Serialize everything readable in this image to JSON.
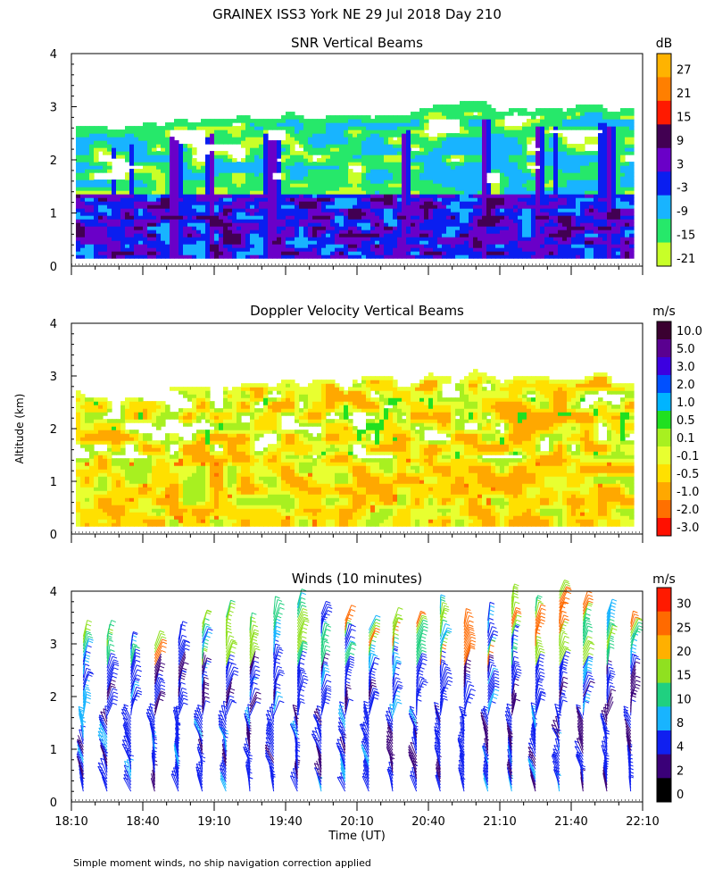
{
  "title": "GRAINEX ISS3 York NE  29 Jul 2018 Day 210",
  "footnote": "Simple moment winds, no ship navigation correction applied",
  "ylabel": "Altitude (km)",
  "xlabel": "Time (UT)",
  "x_ticks": [
    "18:10",
    "18:40",
    "19:10",
    "19:40",
    "20:10",
    "20:40",
    "21:10",
    "21:40",
    "22:10"
  ],
  "chart_data": [
    {
      "type": "heatmap",
      "title": "SNR Vertical Beams",
      "unit": "dB",
      "x_range": [
        "18:10",
        "22:10"
      ],
      "ylim": [
        0,
        4
      ],
      "y_ticks": [
        0,
        1,
        2,
        3,
        4
      ],
      "colorbar": {
        "labels": [
          "27",
          "21",
          "15",
          "9",
          "3",
          "-3",
          "-9",
          "-15",
          "-21"
        ],
        "colors": [
          "#ffb300",
          "#ff7f00",
          "#ff1a00",
          "#420052",
          "#6a00c8",
          "#0a1ef0",
          "#18b4ff",
          "#26e86a",
          "#c8ff28"
        ]
      },
      "echo_top_profile": [
        {
          "t": "18:10",
          "top_km": 2.6
        },
        {
          "t": "18:30",
          "top_km": 2.55
        },
        {
          "t": "18:50",
          "top_km": 2.65
        },
        {
          "t": "19:10",
          "top_km": 2.75
        },
        {
          "t": "19:30",
          "top_km": 2.85
        },
        {
          "t": "19:50",
          "top_km": 2.8
        },
        {
          "t": "20:10",
          "top_km": 2.85
        },
        {
          "t": "20:30",
          "top_km": 2.9
        },
        {
          "t": "20:50",
          "top_km": 3.0
        },
        {
          "t": "21:10",
          "top_km": 2.95
        },
        {
          "t": "21:30",
          "top_km": 3.0
        },
        {
          "t": "21:50",
          "top_km": 2.95
        },
        {
          "t": "22:00",
          "top_km": 2.9
        }
      ]
    },
    {
      "type": "heatmap",
      "title": "Doppler Velocity Vertical Beams",
      "unit": "m/s",
      "x_range": [
        "18:10",
        "22:10"
      ],
      "ylim": [
        0,
        4
      ],
      "y_ticks": [
        0,
        1,
        2,
        3,
        4
      ],
      "colorbar": {
        "labels": [
          "10.0",
          "5.0",
          "3.0",
          "2.0",
          "1.0",
          "0.5",
          "0.1",
          "-0.1",
          "-0.5",
          "-1.0",
          "-2.0",
          "-3.0"
        ],
        "colors": [
          "#3a0030",
          "#5a0090",
          "#3c00e0",
          "#0050ff",
          "#00b4ff",
          "#20e020",
          "#a8f020",
          "#e8ff30",
          "#ffe000",
          "#ffa800",
          "#ff7000",
          "#ff1000"
        ]
      }
    },
    {
      "type": "scatter",
      "title": "Winds (10 minutes)",
      "unit": "m/s",
      "x_range": [
        "18:10",
        "22:10"
      ],
      "ylim": [
        0,
        4
      ],
      "y_ticks": [
        0,
        1,
        2,
        3,
        4
      ],
      "colorbar": {
        "labels": [
          "30",
          "25",
          "20",
          "15",
          "10",
          "8",
          "4",
          "2",
          "0"
        ],
        "colors": [
          "#ff1a00",
          "#ff6a00",
          "#ffb000",
          "#90e020",
          "#20d080",
          "#18b4ff",
          "#1020f0",
          "#3a0078",
          "#000000"
        ]
      },
      "profiles": [
        {
          "t": "18:15",
          "top_km": 3.2
        },
        {
          "t": "18:25",
          "top_km": 3.2
        },
        {
          "t": "18:35",
          "top_km": 3.0
        },
        {
          "t": "18:45",
          "top_km": 3.0
        },
        {
          "t": "18:55",
          "top_km": 3.1
        },
        {
          "t": "19:05",
          "top_km": 3.4
        },
        {
          "t": "19:15",
          "top_km": 3.55
        },
        {
          "t": "19:25",
          "top_km": 3.3
        },
        {
          "t": "19:35",
          "top_km": 3.6
        },
        {
          "t": "19:45",
          "top_km": 3.8
        },
        {
          "t": "19:55",
          "top_km": 3.6
        },
        {
          "t": "20:05",
          "top_km": 3.5
        },
        {
          "t": "20:15",
          "top_km": 3.3
        },
        {
          "t": "20:25",
          "top_km": 3.4
        },
        {
          "t": "20:35",
          "top_km": 3.4
        },
        {
          "t": "20:45",
          "top_km": 3.7
        },
        {
          "t": "20:55",
          "top_km": 3.4
        },
        {
          "t": "21:05",
          "top_km": 3.5
        },
        {
          "t": "21:15",
          "top_km": 3.9
        },
        {
          "t": "21:25",
          "top_km": 3.7
        },
        {
          "t": "21:35",
          "top_km": 4.0
        },
        {
          "t": "21:45",
          "top_km": 3.8
        },
        {
          "t": "21:55",
          "top_km": 3.6
        },
        {
          "t": "22:05",
          "top_km": 3.4
        }
      ]
    }
  ]
}
